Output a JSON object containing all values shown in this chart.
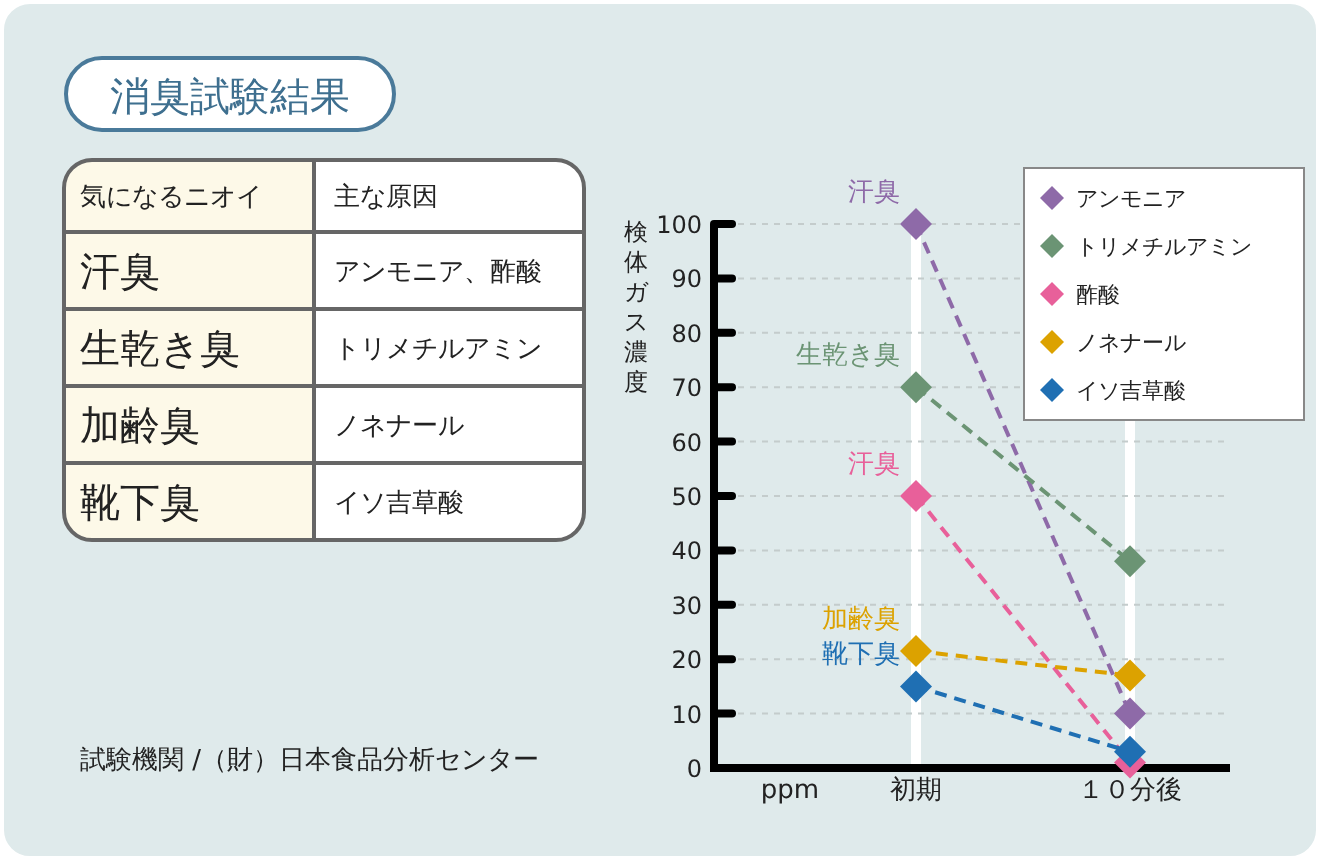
{
  "chart_data": [
    {
      "type": "other",
      "title": "消臭試験結果",
      "annotations": [
        "気になるニオイ",
        "主な原因",
        "汗臭",
        "アンモニア、酢酸",
        "生乾き臭",
        "トリメチルアミン",
        "加齢臭",
        "ノネナール",
        "靴下臭",
        "イソ吉草酸",
        "試験機関 /（財）日本食品分析センター"
      ]
    },
    {
      "type": "line",
      "ylabel": "検体ガス濃度",
      "categories": [
        "初期",
        "１０分後"
      ],
      "series": [
        {
          "name": "アンモニア",
          "color": "#8e6aa8",
          "values": [
            100,
            10
          ]
        },
        {
          "name": "トリメチルアミン",
          "color": "#6b9474",
          "values": [
            70,
            38
          ]
        },
        {
          "name": "酢酸",
          "color": "#e8609a",
          "values": [
            50,
            1
          ]
        },
        {
          "name": "ノネナール",
          "color": "#dca200",
          "values": [
            21.5,
            17
          ]
        },
        {
          "name": "イソ吉草酸",
          "color": "#1f6fb3",
          "values": [
            15,
            3
          ]
        }
      ],
      "annotations": [
        "ppm",
        {
          "text": "汗臭",
          "x": "初期",
          "y": 100
        },
        {
          "text": "生乾き臭",
          "x": "初期",
          "y": 70
        },
        {
          "text": "汗臭",
          "x": "初期",
          "y": 50
        },
        {
          "text": "加齢臭",
          "x": "初期",
          "y": 21.5
        },
        {
          "text": "靴下臭",
          "x": "初期",
          "y": 15
        }
      ],
      "ylim": [
        0,
        100
      ],
      "yticks": [
        0,
        10,
        20,
        30,
        40,
        50,
        60,
        70,
        80,
        90,
        100
      ],
      "grid": true,
      "legend": "top right",
      "marker": "diamond",
      "line_style": "dashed"
    }
  ]
}
